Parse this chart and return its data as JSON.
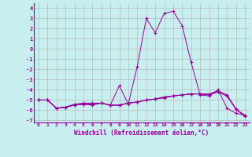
{
  "xlabel": "Windchill (Refroidissement éolien,°C)",
  "background_color": "#c8eef0",
  "grid_color": "#b0b0b0",
  "line_color": "#990099",
  "xlim": [
    -0.5,
    23.5
  ],
  "ylim": [
    -7.2,
    4.5
  ],
  "xticks": [
    0,
    1,
    2,
    3,
    4,
    5,
    6,
    7,
    8,
    9,
    10,
    11,
    12,
    13,
    14,
    15,
    16,
    17,
    18,
    19,
    20,
    21,
    22,
    23
  ],
  "yticks": [
    -7,
    -6,
    -5,
    -4,
    -3,
    -2,
    -1,
    0,
    1,
    2,
    3,
    4
  ],
  "series": [
    [
      -5.0,
      -5.0,
      -5.8,
      -5.7,
      -5.4,
      -5.3,
      -5.3,
      -5.3,
      -5.5,
      -3.6,
      -5.4,
      -1.7,
      3.0,
      1.6,
      3.5,
      3.7,
      2.3,
      -1.3,
      -4.5,
      -4.6,
      -4.0,
      -5.8,
      -6.3,
      -6.5
    ],
    [
      -5.0,
      -5.0,
      -5.8,
      -5.7,
      -5.5,
      -5.4,
      -5.4,
      -5.3,
      -5.5,
      -5.5,
      -5.3,
      -5.2,
      -5.0,
      -4.9,
      -4.7,
      -4.6,
      -4.5,
      -4.4,
      -4.4,
      -4.4,
      -4.1,
      -4.5,
      -5.9,
      -6.5
    ],
    [
      -5.0,
      -5.0,
      -5.8,
      -5.7,
      -5.5,
      -5.4,
      -5.4,
      -5.3,
      -5.5,
      -5.5,
      -5.3,
      -5.2,
      -5.0,
      -4.9,
      -4.7,
      -4.6,
      -4.5,
      -4.4,
      -4.4,
      -4.5,
      -4.2,
      -4.6,
      -5.9,
      -6.6
    ],
    [
      -5.0,
      -5.0,
      -5.8,
      -5.7,
      -5.5,
      -5.4,
      -5.5,
      -5.3,
      -5.5,
      -5.5,
      -5.3,
      -5.2,
      -5.0,
      -4.9,
      -4.8,
      -4.6,
      -4.5,
      -4.4,
      -4.4,
      -4.5,
      -4.2,
      -4.6,
      -5.9,
      -6.6
    ]
  ]
}
